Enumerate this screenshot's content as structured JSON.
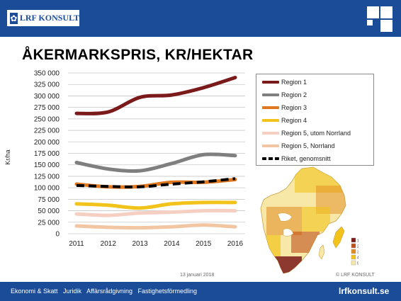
{
  "header": {
    "logo_text": "LRF KONSULT",
    "logo_icon": "lrf-flower-icon"
  },
  "chart_data": {
    "type": "line",
    "title": "ÅKERMARKSPRIS, KR/HEKTAR",
    "xlabel": "",
    "ylabel": "Kr/ha",
    "x": [
      2011,
      2012,
      2013,
      2014,
      2015,
      2016
    ],
    "ylim": [
      0,
      350000
    ],
    "yticks": [
      "0",
      "25 000",
      "50 000",
      "75 000",
      "100 000",
      "125 000",
      "150 000",
      "175 000",
      "200 000",
      "225 000",
      "250 000",
      "275 000",
      "300 000",
      "325 000",
      "350 000"
    ],
    "grid": true,
    "legend_position": "right",
    "series": [
      {
        "name": "Region 1",
        "color": "#7a1a1a",
        "style": "solid",
        "values": [
          262000,
          265000,
          297000,
          302000,
          318000,
          340000
        ]
      },
      {
        "name": "Region 2",
        "color": "#7f7f7f",
        "style": "solid",
        "values": [
          155000,
          141000,
          137000,
          153000,
          172000,
          170000
        ]
      },
      {
        "name": "Region 3",
        "color": "#e07820",
        "style": "solid",
        "values": [
          108000,
          102000,
          103000,
          112000,
          112000,
          118000
        ]
      },
      {
        "name": "Region 4",
        "color": "#f2c31a",
        "style": "solid",
        "values": [
          65000,
          62000,
          56000,
          65000,
          68000,
          68000
        ]
      },
      {
        "name": "Region 5, utom Norrland",
        "color": "#f6cfc3",
        "style": "solid",
        "values": [
          43000,
          40000,
          45000,
          47000,
          50000,
          50000
        ]
      },
      {
        "name": "Region 5, Norrland",
        "color": "#f3c6a3",
        "style": "solid",
        "values": [
          17000,
          14000,
          13000,
          15000,
          19000,
          15000
        ]
      },
      {
        "name": "Riket, genomsnitt",
        "color": "#000000",
        "style": "dashed",
        "values": [
          105000,
          103000,
          102000,
          108000,
          113000,
          120000
        ]
      }
    ]
  },
  "map": {
    "icon": "sweden-regions-map-icon",
    "legend": [
      "1",
      "2",
      "3",
      "4",
      "5"
    ],
    "legend_colors": [
      "#7a1a1a",
      "#c0501a",
      "#e08a20",
      "#f2c31a",
      "#f8e8a8"
    ]
  },
  "date_text": "13 januari 2018",
  "copyright_text": "© LRF KONSULT",
  "footer": {
    "links": [
      "Ekonomi & Skatt",
      "Juridik",
      "Affärsrådgivning",
      "Fastighetsförmedling"
    ],
    "site": "lrfkonsult.se"
  }
}
